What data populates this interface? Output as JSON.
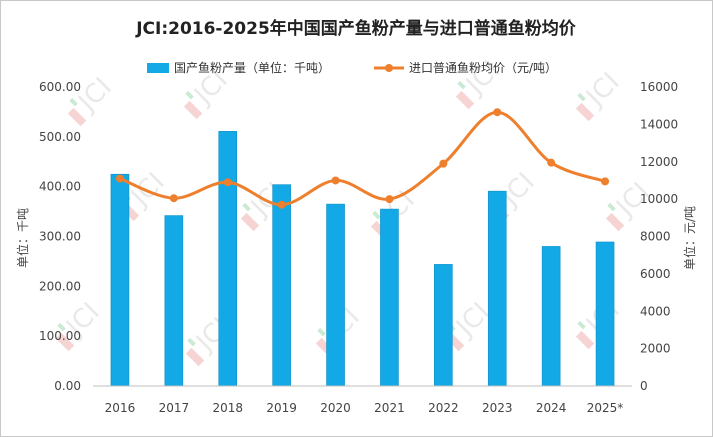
{
  "chart_data": {
    "type": "bar+line",
    "title": "JCI:2016-2025年中国国产鱼粉产量与进口普通鱼粉均价",
    "categories": [
      "2016",
      "2017",
      "2018",
      "2019",
      "2020",
      "2021",
      "2022",
      "2023",
      "2024",
      "2025*"
    ],
    "series": [
      {
        "name": "国产鱼粉产量（单位：千吨）",
        "type": "bar",
        "axis": "left",
        "color": "#12a9e6",
        "values": [
          425,
          342,
          511,
          404,
          365,
          355,
          244,
          391,
          280,
          289
        ]
      },
      {
        "name": "进口普通鱼粉均价（元/吨）",
        "type": "line",
        "axis": "right",
        "color": "#ee7f2d",
        "values": [
          11100,
          10050,
          10900,
          9700,
          11000,
          10000,
          11900,
          14650,
          11950,
          10950
        ]
      }
    ],
    "y_left": {
      "label": "单位：千吨",
      "ylim": [
        0,
        600
      ],
      "ticks": [
        "0.00",
        "100.00",
        "200.00",
        "300.00",
        "400.00",
        "500.00",
        "600.00"
      ]
    },
    "y_right": {
      "label": "单位：元/吨",
      "ylim": [
        0,
        16000
      ],
      "ticks": [
        "0",
        "2000",
        "4000",
        "6000",
        "8000",
        "10000",
        "12000",
        "14000",
        "16000"
      ]
    },
    "legend_position": "top-center",
    "grid": false
  },
  "watermark": {
    "text": "JCI",
    "colors": {
      "j": "#f2b7b7",
      "g": "#a9dcb5",
      "text": "#d8d8d8"
    }
  }
}
